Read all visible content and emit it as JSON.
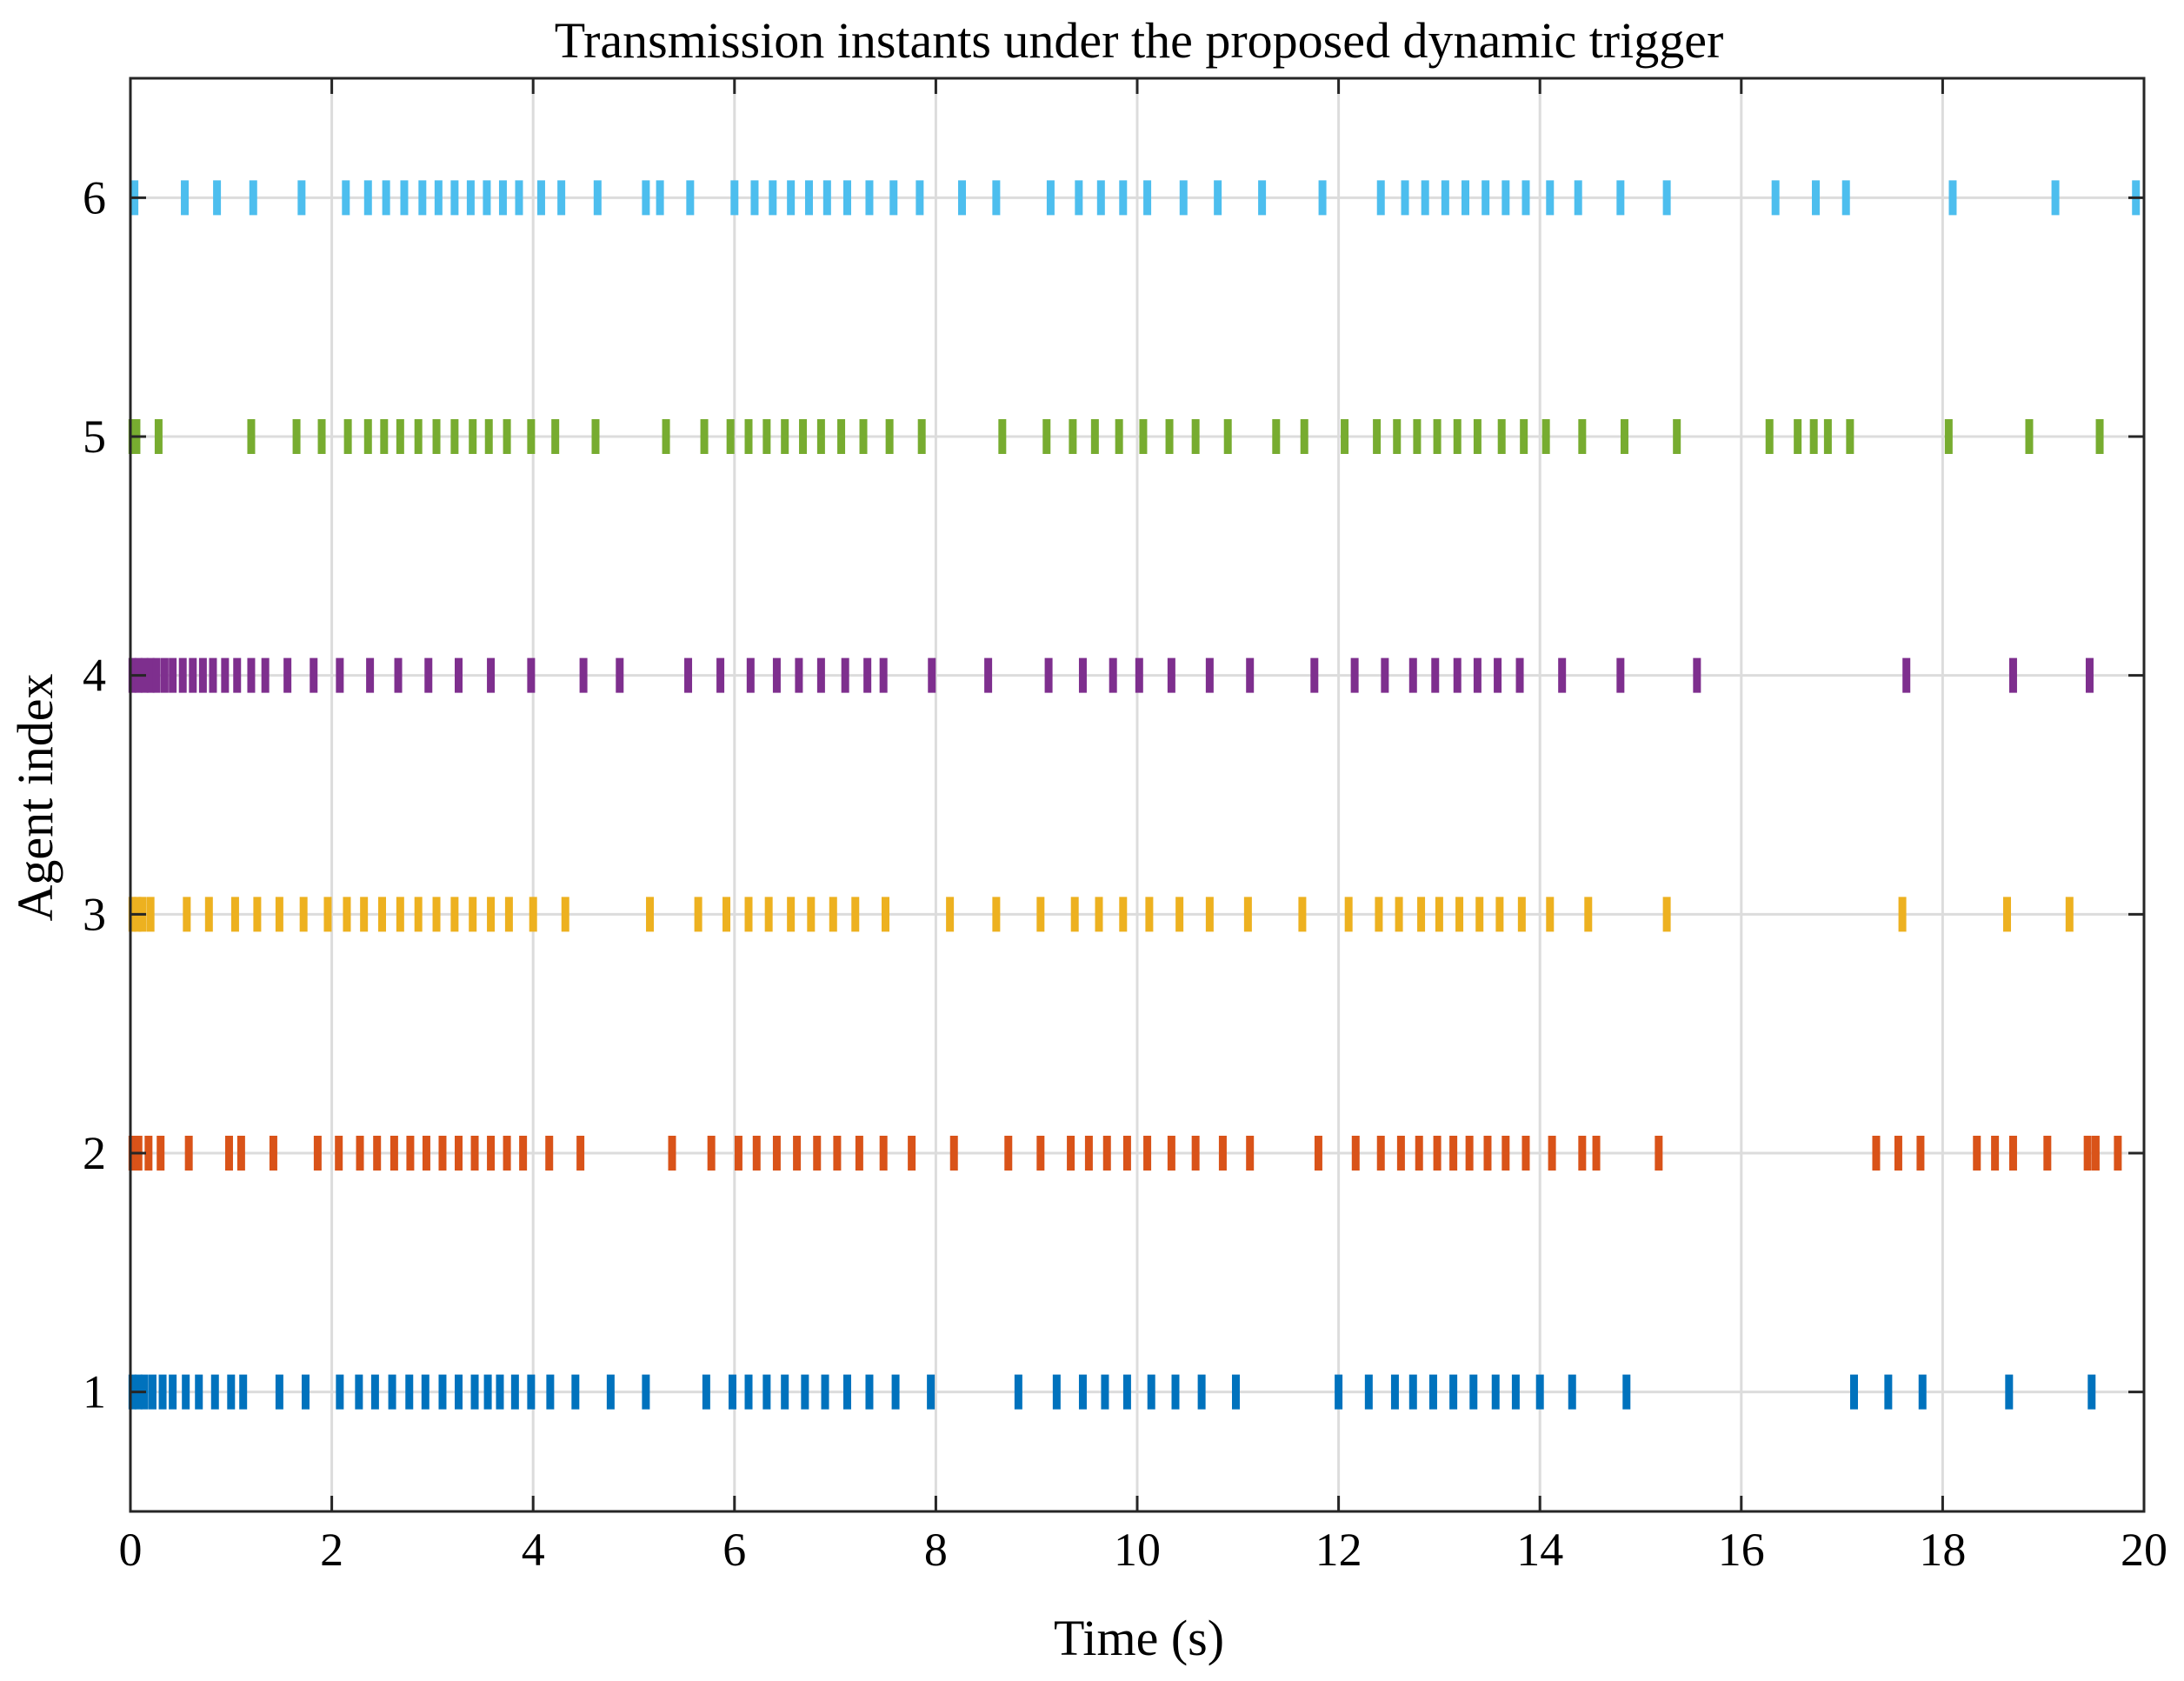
{
  "chart_data": {
    "type": "scatter",
    "title": "Transmission instants under the proposed dynamic trigger",
    "xlabel": "Time (s)",
    "ylabel": "Agent index",
    "xlim": [
      0,
      20
    ],
    "ylim": [
      0.5,
      6.5
    ],
    "xticks": [
      "0",
      "2",
      "4",
      "6",
      "8",
      "10",
      "12",
      "14",
      "16",
      "18",
      "20"
    ],
    "yticks": [
      "1",
      "2",
      "3",
      "4",
      "5",
      "6"
    ],
    "grid": true,
    "marker": "vertical-tick",
    "series": [
      {
        "agent": 1,
        "color": "#0072BD",
        "events": [
          0.02,
          0.08,
          0.14,
          0.22,
          0.32,
          0.42,
          0.55,
          0.68,
          0.84,
          1.0,
          1.12,
          1.48,
          1.74,
          2.08,
          2.27,
          2.43,
          2.6,
          2.77,
          2.93,
          3.1,
          3.26,
          3.42,
          3.55,
          3.67,
          3.82,
          3.98,
          4.17,
          4.42,
          4.77,
          5.12,
          5.72,
          5.98,
          6.14,
          6.32,
          6.5,
          6.7,
          6.9,
          7.12,
          7.34,
          7.6,
          7.95,
          8.82,
          9.2,
          9.46,
          9.68,
          9.9,
          10.14,
          10.38,
          10.64,
          10.98,
          12.0,
          12.3,
          12.56,
          12.74,
          12.94,
          13.14,
          13.34,
          13.56,
          13.76,
          14.0,
          14.32,
          14.86,
          17.12,
          17.46,
          17.8,
          18.66,
          19.48
        ]
      },
      {
        "agent": 2,
        "color": "#D95319",
        "events": [
          0.02,
          0.08,
          0.18,
          0.3,
          0.58,
          0.98,
          1.1,
          1.42,
          1.86,
          2.07,
          2.28,
          2.45,
          2.62,
          2.78,
          2.94,
          3.1,
          3.26,
          3.42,
          3.58,
          3.74,
          3.9,
          4.16,
          4.47,
          5.38,
          5.77,
          6.04,
          6.22,
          6.42,
          6.62,
          6.82,
          7.02,
          7.24,
          7.48,
          7.76,
          8.18,
          8.72,
          9.04,
          9.34,
          9.52,
          9.7,
          9.9,
          10.1,
          10.34,
          10.58,
          10.85,
          11.12,
          11.8,
          12.17,
          12.42,
          12.62,
          12.8,
          12.98,
          13.14,
          13.3,
          13.48,
          13.66,
          13.86,
          14.12,
          14.42,
          14.56,
          15.18,
          17.34,
          17.56,
          17.78,
          18.34,
          18.52,
          18.7,
          19.04,
          19.44,
          19.52,
          19.74
        ]
      },
      {
        "agent": 3,
        "color": "#EDB120",
        "events": [
          0.02,
          0.07,
          0.12,
          0.2,
          0.56,
          0.78,
          1.04,
          1.26,
          1.48,
          1.72,
          1.96,
          2.15,
          2.32,
          2.5,
          2.68,
          2.86,
          3.04,
          3.22,
          3.4,
          3.58,
          3.76,
          4.0,
          4.32,
          5.16,
          5.64,
          5.92,
          6.14,
          6.34,
          6.56,
          6.76,
          6.98,
          7.2,
          7.5,
          8.14,
          8.6,
          9.04,
          9.38,
          9.62,
          9.86,
          10.12,
          10.42,
          10.72,
          11.1,
          11.64,
          12.1,
          12.4,
          12.6,
          12.82,
          13.0,
          13.2,
          13.4,
          13.6,
          13.82,
          14.1,
          14.48,
          15.26,
          17.6,
          18.64,
          19.26
        ]
      },
      {
        "agent": 4,
        "color": "#7E2F8E",
        "events": [
          0.02,
          0.08,
          0.14,
          0.2,
          0.26,
          0.34,
          0.42,
          0.52,
          0.62,
          0.72,
          0.82,
          0.94,
          1.06,
          1.2,
          1.34,
          1.56,
          1.82,
          2.08,
          2.38,
          2.66,
          2.96,
          3.26,
          3.58,
          3.98,
          4.5,
          4.86,
          5.54,
          5.86,
          6.16,
          6.42,
          6.64,
          6.86,
          7.1,
          7.32,
          7.48,
          7.96,
          8.52,
          9.12,
          9.46,
          9.76,
          10.02,
          10.34,
          10.72,
          11.12,
          11.76,
          12.16,
          12.46,
          12.74,
          12.96,
          13.18,
          13.38,
          13.58,
          13.8,
          14.22,
          14.8,
          15.56,
          17.64,
          18.7,
          19.46
        ]
      },
      {
        "agent": 5,
        "color": "#77AC30",
        "events": [
          0.02,
          0.06,
          0.28,
          1.2,
          1.65,
          1.9,
          2.16,
          2.36,
          2.52,
          2.68,
          2.86,
          3.04,
          3.22,
          3.4,
          3.56,
          3.74,
          3.98,
          4.22,
          4.62,
          5.32,
          5.7,
          5.96,
          6.14,
          6.32,
          6.5,
          6.68,
          6.86,
          7.06,
          7.28,
          7.54,
          7.86,
          8.66,
          9.1,
          9.36,
          9.58,
          9.82,
          10.06,
          10.32,
          10.58,
          10.9,
          11.38,
          11.66,
          12.06,
          12.38,
          12.58,
          12.78,
          12.98,
          13.18,
          13.38,
          13.62,
          13.84,
          14.06,
          14.42,
          14.84,
          15.36,
          16.28,
          16.56,
          16.72,
          16.86,
          17.08,
          18.06,
          18.86,
          19.56
        ]
      },
      {
        "agent": 6,
        "color": "#4DBEEE",
        "events": [
          0.04,
          0.54,
          0.86,
          1.22,
          1.7,
          2.14,
          2.36,
          2.54,
          2.72,
          2.9,
          3.06,
          3.22,
          3.38,
          3.54,
          3.7,
          3.86,
          4.08,
          4.28,
          4.64,
          5.12,
          5.26,
          5.56,
          6.0,
          6.2,
          6.38,
          6.56,
          6.74,
          6.92,
          7.12,
          7.34,
          7.58,
          7.84,
          8.26,
          8.6,
          9.14,
          9.42,
          9.64,
          9.86,
          10.1,
          10.46,
          10.8,
          11.24,
          11.84,
          12.42,
          12.66,
          12.86,
          13.06,
          13.26,
          13.46,
          13.66,
          13.86,
          14.1,
          14.38,
          14.8,
          15.26,
          16.34,
          16.74,
          17.04,
          18.1,
          19.12,
          19.92
        ]
      }
    ]
  }
}
